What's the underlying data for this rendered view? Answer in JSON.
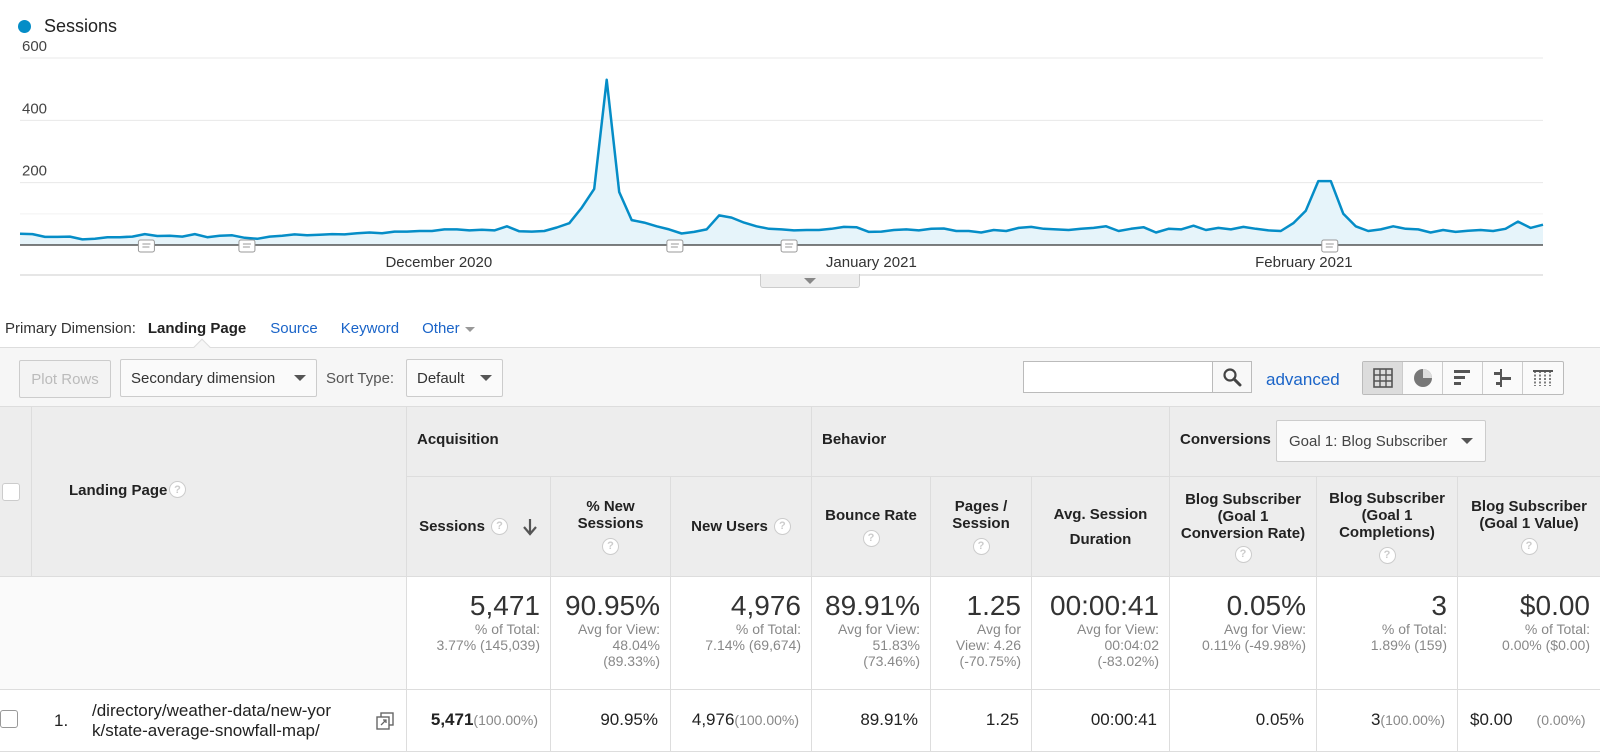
{
  "chart_data": {
    "type": "area",
    "series": [
      {
        "name": "Sessions",
        "values": [
          36,
          35,
          26,
          26,
          27,
          18,
          20,
          25,
          25,
          27,
          35,
          29,
          30,
          27,
          35,
          25,
          30,
          31,
          23,
          20,
          27,
          30,
          34,
          31,
          33,
          35,
          34,
          38,
          40,
          38,
          43,
          43,
          45,
          45,
          50,
          50,
          47,
          49,
          47,
          60,
          44,
          43,
          45,
          56,
          70,
          120,
          180,
          530,
          170,
          80,
          72,
          60,
          50,
          37,
          42,
          50,
          95,
          88,
          72,
          60,
          52,
          50,
          47,
          48,
          48,
          52,
          58,
          57,
          42,
          43,
          48,
          50,
          47,
          52,
          53,
          45,
          45,
          40,
          48,
          45,
          55,
          58,
          52,
          50,
          48,
          52,
          55,
          60,
          45,
          52,
          57,
          40,
          52,
          50,
          62,
          48,
          55,
          50,
          58,
          52,
          47,
          45,
          70,
          110,
          205,
          205,
          100,
          60,
          45,
          50,
          60,
          52,
          50,
          40,
          48,
          42,
          46,
          48,
          45,
          52,
          75,
          55,
          65
        ]
      }
    ],
    "x_ticks": [
      "December 2020",
      "January 2021",
      "February 2021"
    ],
    "y_ticks": [
      200,
      400,
      600
    ],
    "ylim": [
      0,
      600
    ],
    "legend_position": "top-left",
    "colors": {
      "line": "#058dc7",
      "fill": "#e6f4fa"
    }
  },
  "legend": {
    "label": "Sessions"
  },
  "primary_dimension": {
    "label": "Primary Dimension:",
    "active": "Landing Page",
    "links": [
      "Source",
      "Keyword",
      "Other"
    ]
  },
  "toolbar": {
    "plot_rows": "Plot Rows",
    "secondary_dimension": "Secondary dimension",
    "sort_type_label": "Sort Type:",
    "sort_type_value": "Default",
    "search_placeholder": "",
    "advanced": "advanced"
  },
  "table": {
    "landing_page_header": "Landing Page",
    "groups": {
      "acquisition": "Acquisition",
      "behavior": "Behavior",
      "conversions": "Conversions",
      "goal_select": "Goal 1: Blog Subscriber"
    },
    "columns": {
      "sessions": "Sessions",
      "new_sessions": "% New Sessions",
      "new_users": "New Users",
      "bounce_rate": "Bounce Rate",
      "pages_session": "Pages / Session",
      "avg_duration": "Avg. Session Duration",
      "conv_rate": "Blog Subscriber (Goal 1 Conversion Rate)",
      "completions": "Blog Subscriber (Goal 1 Completions)",
      "goal_value": "Blog Subscriber (Goal 1 Value)"
    },
    "totals": {
      "sessions": {
        "main": "5,471",
        "sub1": "% of Total:",
        "sub2": "3.77% (145,039)"
      },
      "new_sessions": {
        "main": "90.95%",
        "sub1": "Avg for View:",
        "sub2": "48.04%",
        "sub3": "(89.33%)"
      },
      "new_users": {
        "main": "4,976",
        "sub1": "% of Total:",
        "sub2": "7.14% (69,674)"
      },
      "bounce_rate": {
        "main": "89.91%",
        "sub1": "Avg for View:",
        "sub2": "51.83%",
        "sub3": "(73.46%)"
      },
      "pages_session": {
        "main": "1.25",
        "sub1": "Avg for",
        "sub2": "View: 4.26",
        "sub3": "(-70.75%)"
      },
      "avg_duration": {
        "main": "00:00:41",
        "sub1": "Avg for View:",
        "sub2": "00:04:02",
        "sub3": "(-83.02%)"
      },
      "conv_rate": {
        "main": "0.05%",
        "sub1": "Avg for View:",
        "sub2": "0.11% (-49.98%)"
      },
      "completions": {
        "main": "3",
        "sub1": "% of Total:",
        "sub2": "1.89% (159)"
      },
      "goal_value": {
        "main": "$0.00",
        "sub1": "% of Total:",
        "sub2": "0.00% ($0.00)"
      }
    },
    "rows": [
      {
        "index": "1.",
        "page_line1": "/directory/weather-data/new-yor",
        "page_line2": "k/state-average-snowfall-map/",
        "sessions": "5,471",
        "sessions_pct": "(100.00%)",
        "new_sessions": "90.95%",
        "new_users": "4,976",
        "new_users_pct": "(100.00%)",
        "bounce_rate": "89.91%",
        "pages_session": "1.25",
        "avg_duration": "00:00:41",
        "conv_rate": "0.05%",
        "completions": "3",
        "completions_pct": "(100.00%)",
        "goal_value": "$0.00",
        "goal_value_pct": "(0.00%)"
      }
    ]
  }
}
